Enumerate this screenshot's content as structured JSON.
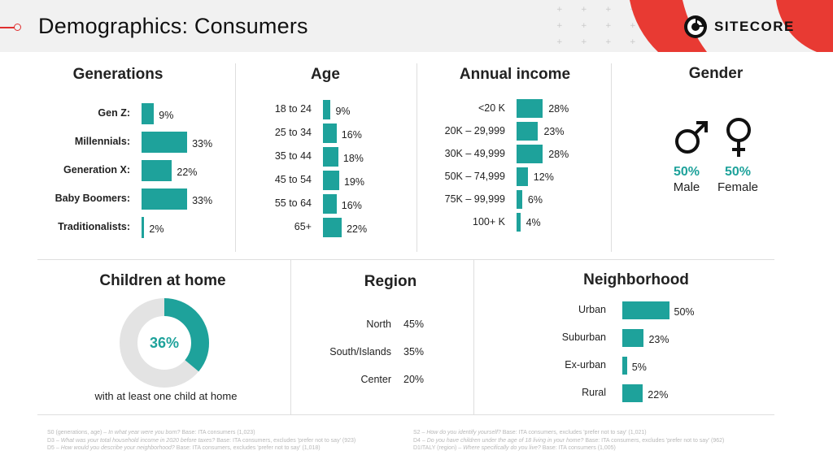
{
  "header": {
    "title": "Demographics: Consumers",
    "logo_text": "SITECORE",
    "accent_color": "#e03030"
  },
  "colors": {
    "bar": "#1ea29b",
    "donut_rest": "#e3e3e3"
  },
  "generations": {
    "title": "Generations",
    "rows": [
      {
        "label": "Gen Z:",
        "value": "9%",
        "pct": 9
      },
      {
        "label": "Millennials:",
        "value": "33%",
        "pct": 33
      },
      {
        "label": "Generation X:",
        "value": "22%",
        "pct": 22
      },
      {
        "label": "Baby Boomers:",
        "value": "33%",
        "pct": 33
      },
      {
        "label": "Traditionalists:",
        "value": "2%",
        "pct": 2
      }
    ]
  },
  "age": {
    "title": "Age",
    "rows": [
      {
        "label": "18 to 24",
        "value": "9%",
        "pct": 9
      },
      {
        "label": "25 to 34",
        "value": "16%",
        "pct": 16
      },
      {
        "label": "35 to 44",
        "value": "18%",
        "pct": 18
      },
      {
        "label": "45 to 54",
        "value": "19%",
        "pct": 19
      },
      {
        "label": "55 to 64",
        "value": "16%",
        "pct": 16
      },
      {
        "label": "65+",
        "value": "22%",
        "pct": 22
      }
    ]
  },
  "income": {
    "title": "Annual income",
    "rows": [
      {
        "label": "<20 K",
        "value": "28%",
        "pct": 28
      },
      {
        "label": "20K – 29,999",
        "value": "23%",
        "pct": 23
      },
      {
        "label": "30K – 49,999",
        "value": "28%",
        "pct": 28
      },
      {
        "label": "50K – 74,999",
        "value": "12%",
        "pct": 12
      },
      {
        "label": "75K – 99,999",
        "value": "6%",
        "pct": 6
      },
      {
        "label": "100+ K",
        "value": "4%",
        "pct": 4
      }
    ]
  },
  "gender": {
    "title": "Gender",
    "male": {
      "value": "50%",
      "label": "Male"
    },
    "female": {
      "value": "50%",
      "label": "Female"
    }
  },
  "children": {
    "title": "Children at home",
    "value": "36%",
    "pct": 36,
    "caption": "with at least one child at home"
  },
  "region": {
    "title": "Region",
    "rows": [
      {
        "label": "North",
        "value": "45%"
      },
      {
        "label": "South/Islands",
        "value": "35%"
      },
      {
        "label": "Center",
        "value": "20%"
      }
    ]
  },
  "neighborhood": {
    "title": "Neighborhood",
    "rows": [
      {
        "label": "Urban",
        "value": "50%",
        "pct": 50
      },
      {
        "label": "Suburban",
        "value": "23%",
        "pct": 23
      },
      {
        "label": "Ex-urban",
        "value": "5%",
        "pct": 5
      },
      {
        "label": "Rural",
        "value": "22%",
        "pct": 22
      }
    ]
  },
  "footnotes": {
    "left": [
      {
        "code": "S0 (generations, age) –",
        "question": "In what year were you born?",
        "base": "Base: ITA consumers (1,023)"
      },
      {
        "code": "D3 –",
        "question": "What was your total household income in 2020 before taxes?",
        "base": "Base: ITA consumers, excludes 'prefer not to say' (923)"
      },
      {
        "code": "D5 –",
        "question": "How would you describe your neighborhood?",
        "base": "Base: ITA consumers, excludes 'prefer not to say' (1,018)"
      }
    ],
    "right": [
      {
        "code": "S2 –",
        "question": "How do you identify yourself?",
        "base": "Base: ITA consumers, excludes 'prefer not to say' (1,021)"
      },
      {
        "code": "D4 –",
        "question": "Do you have children under the age of 18 living in your home?",
        "base": "Base: ITA consumers, excludes 'prefer not to say' (962)"
      },
      {
        "code": "D1ITALY (region) –",
        "question": "Where specifically do you live?",
        "base": "Base: ITA consumers (1,005)"
      }
    ]
  }
}
